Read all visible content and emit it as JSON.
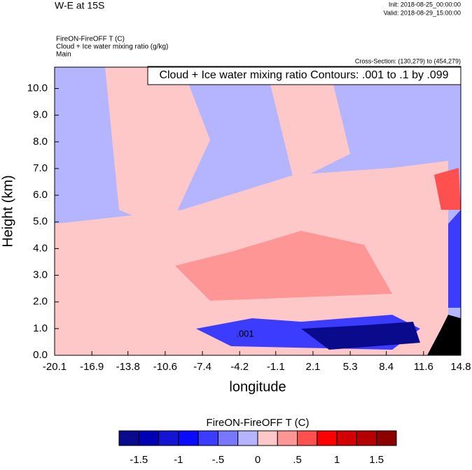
{
  "chart_data": {
    "type": "contour",
    "title": "W-E at 15S",
    "init": "Init: 2018-08-25_00:00:00",
    "valid": "Valid: 2018-08-29_15:00:00",
    "field_name": "FireON-FireOFF T   (C)",
    "contour_name": "Cloud + Ice water mixing ratio   (g/kg)",
    "domain": "Main",
    "cross_section": "Cross-Section: (130,279) to (454,279)",
    "contour_info": "Cloud + Ice water mixing ratio Contours: .001 to .1 by .099",
    "contour_label": ".001",
    "xlabel": "longitude",
    "ylabel": "Height (km)",
    "xlim": [
      -20.1,
      14.8
    ],
    "xticks": [
      -20.1,
      -16.9,
      -13.8,
      -10.6,
      -7.4,
      -4.2,
      -1.1,
      2.1,
      5.3,
      8.4,
      11.6,
      14.8
    ],
    "ylim": [
      0,
      10.8
    ],
    "yticks": [
      {
        "value": 0,
        "label": "0.0"
      },
      {
        "value": 1,
        "label": "1.0"
      },
      {
        "value": 2,
        "label": "2.0"
      },
      {
        "value": 3,
        "label": "3.0"
      },
      {
        "value": 4,
        "label": "4.0"
      },
      {
        "value": 5,
        "label": "5.0"
      },
      {
        "value": 6,
        "label": "6.0"
      },
      {
        "value": 7,
        "label": "7.0"
      },
      {
        "value": 8,
        "label": "8.0"
      },
      {
        "value": 9,
        "label": "9.0"
      },
      {
        "value": 10,
        "label": "10.0"
      }
    ],
    "colorbar": {
      "title": "FireON-FireOFF T  (C)",
      "levels": [
        -1.75,
        -1.5,
        -1.25,
        -1,
        -0.75,
        -0.5,
        -0.25,
        0,
        0.25,
        0.5,
        0.75,
        1,
        1.25,
        1.5,
        1.75
      ],
      "colors": [
        "#0a0a8c",
        "#0000b4",
        "#1414d2",
        "#0a0aff",
        "#3c3cff",
        "#7878ff",
        "#b4b4ff",
        "#ffc8c8",
        "#ff9696",
        "#ff5050",
        "#ff0000",
        "#d20000",
        "#b40000",
        "#8c0000"
      ],
      "ticks": [
        {
          "value": -1.5,
          "label": "-1.5"
        },
        {
          "value": -1,
          "label": "-1"
        },
        {
          "value": -0.5,
          "label": "-.5"
        },
        {
          "value": 0,
          "label": "0"
        },
        {
          "value": 0.5,
          "label": ".5"
        },
        {
          "value": 1,
          "label": "1"
        },
        {
          "value": 1.5,
          "label": "1.5"
        }
      ]
    }
  }
}
